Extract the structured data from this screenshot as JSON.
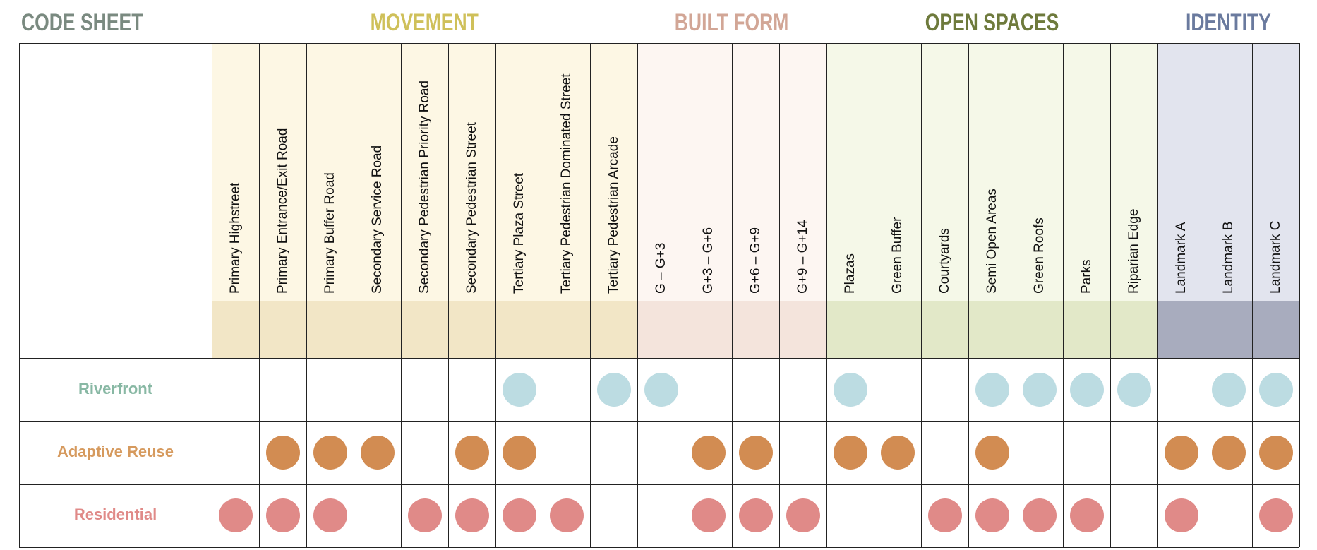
{
  "title": "CODE SHEET",
  "colors": {
    "title": "#7a8a80",
    "grid": "#222222",
    "Riverfront": "#bcdce2",
    "Adaptive Reuse": "#d28c52",
    "Residential": "#e08a88",
    "riverfront_label": "#88b8a4",
    "adaptive_label": "#d69a5e",
    "residential_label": "#e08a88"
  },
  "categories": [
    {
      "name": "MOVEMENT",
      "color": "#cfc05a",
      "header_bg": "#fdf7e4",
      "band_bg": "#f2e6c6",
      "span": 9
    },
    {
      "name": "BUILT FORM",
      "color": "#d2a696",
      "header_bg": "#fdf6f2",
      "band_bg": "#f4e4dc",
      "span": 4
    },
    {
      "name": "OPEN SPACES",
      "color": "#6e7a3c",
      "header_bg": "#f5f8e8",
      "band_bg": "#e2e8c8",
      "span": 7
    },
    {
      "name": "IDENTITY",
      "color": "#6a7a9e",
      "header_bg": "#e2e4ee",
      "band_bg": "#a8acbe",
      "span": 3
    }
  ],
  "columns": [
    "Primary Highstreet",
    "Primary Entrance/Exit Road",
    "Primary Buffer Road",
    "Secondary Service Road",
    "Secondary Pedestrian Priority Road",
    "Secondary Pedestrian Street",
    "Tertiary Plaza Street",
    "Tertiary Pedestrian Dominated Street",
    "Tertiary Pedestrian  Arcade",
    "G – G+3",
    "G+3 – G+6",
    "G+6 – G+9",
    "G+9 – G+14",
    "Plazas",
    "Green Buffer",
    "Courtyards",
    "Semi Open Areas",
    "Green Roofs",
    "Parks",
    "Riparian Edge",
    "Landmark A",
    "Landmark B",
    "Landmark C"
  ],
  "rows": [
    {
      "label": "Riverfront",
      "marks": [
        0,
        0,
        0,
        0,
        0,
        0,
        1,
        0,
        1,
        1,
        0,
        0,
        0,
        1,
        0,
        0,
        1,
        1,
        1,
        1,
        0,
        1,
        1
      ]
    },
    {
      "label": "Adaptive Reuse",
      "marks": [
        0,
        1,
        1,
        1,
        0,
        1,
        1,
        0,
        0,
        0,
        1,
        1,
        0,
        1,
        1,
        0,
        1,
        0,
        0,
        0,
        1,
        1,
        1
      ]
    },
    {
      "label": "Residential",
      "marks": [
        1,
        1,
        1,
        0,
        1,
        1,
        1,
        1,
        0,
        0,
        1,
        1,
        1,
        0,
        0,
        1,
        1,
        1,
        1,
        0,
        1,
        0,
        1
      ]
    }
  ]
}
